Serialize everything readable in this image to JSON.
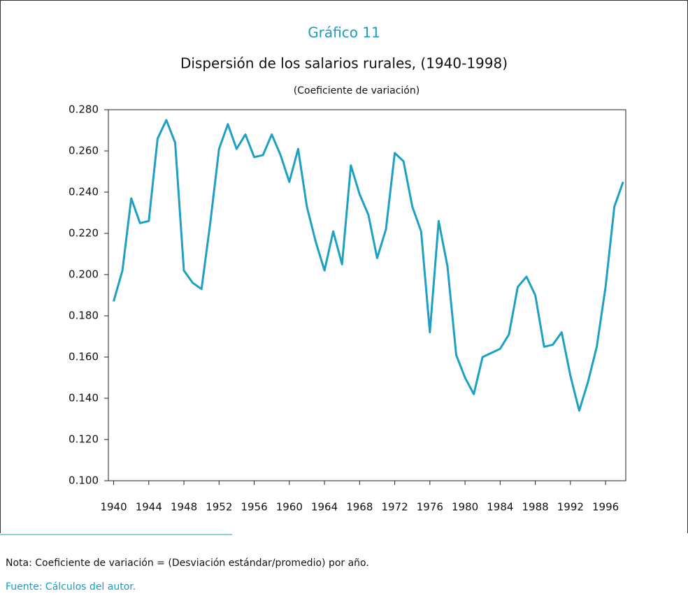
{
  "chart_data": {
    "type": "line",
    "title": "Gráfico 11",
    "subtitle": "Dispersión de los salarios rurales, (1940-1998)",
    "y_axis_label": "(Coeficiente de variación)",
    "note": "Nota: Coeficiente de variación = (Desviación estándar/promedio) por año.",
    "source": "Fuente: Cálculos del autor.",
    "x": [
      1940,
      1941,
      1942,
      1943,
      1944,
      1945,
      1946,
      1947,
      1948,
      1949,
      1950,
      1951,
      1952,
      1953,
      1954,
      1955,
      1956,
      1957,
      1958,
      1959,
      1960,
      1961,
      1962,
      1963,
      1964,
      1965,
      1966,
      1967,
      1968,
      1969,
      1970,
      1971,
      1972,
      1973,
      1974,
      1975,
      1976,
      1977,
      1978,
      1979,
      1980,
      1981,
      1982,
      1983,
      1984,
      1985,
      1986,
      1987,
      1988,
      1989,
      1990,
      1991,
      1992,
      1993,
      1994,
      1995,
      1996,
      1997,
      1998
    ],
    "series": [
      {
        "name": "Coeficiente de variación",
        "color": "#1ea0c4",
        "values": [
          0.187,
          0.202,
          0.237,
          0.225,
          0.226,
          0.266,
          0.275,
          0.264,
          0.202,
          0.196,
          0.193,
          0.225,
          0.261,
          0.273,
          0.261,
          0.268,
          0.257,
          0.258,
          0.268,
          0.258,
          0.245,
          0.261,
          0.233,
          0.216,
          0.202,
          0.221,
          0.205,
          0.253,
          0.239,
          0.229,
          0.208,
          0.222,
          0.259,
          0.255,
          0.233,
          0.221,
          0.172,
          0.226,
          0.204,
          0.161,
          0.15,
          0.142,
          0.16,
          0.162,
          0.164,
          0.171,
          0.194,
          0.199,
          0.19,
          0.165,
          0.166,
          0.172,
          0.151,
          0.134,
          0.148,
          0.165,
          0.194,
          0.233,
          0.245
        ]
      }
    ],
    "xlim": [
      1939.4,
      1998.3
    ],
    "xticks": [
      1940,
      1944,
      1948,
      1952,
      1956,
      1960,
      1964,
      1968,
      1972,
      1976,
      1980,
      1984,
      1988,
      1992,
      1996
    ],
    "ylim": [
      0.1,
      0.28
    ],
    "yticks": [
      {
        "value": 0.1,
        "label": "0.100"
      },
      {
        "value": 0.12,
        "label": "0.120"
      },
      {
        "value": 0.14,
        "label": "0.140"
      },
      {
        "value": 0.16,
        "label": "0.160"
      },
      {
        "value": 0.18,
        "label": "0.180"
      },
      {
        "value": 0.2,
        "label": "0.200"
      },
      {
        "value": 0.22,
        "label": "0.220"
      },
      {
        "value": 0.24,
        "label": "0.240"
      },
      {
        "value": 0.26,
        "label": "0.260"
      },
      {
        "value": 0.28,
        "label": "0.280"
      }
    ],
    "title_color": "#1a9cc4",
    "source_color": "#1a9cc4"
  }
}
